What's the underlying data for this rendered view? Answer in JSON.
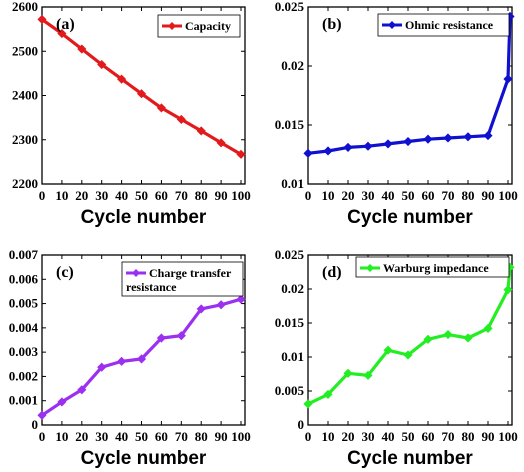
{
  "chart_data": [
    {
      "type": "line",
      "panel_tag": "(a)",
      "xlabel": "Cycle number",
      "ylabel": "",
      "x": [
        0,
        10,
        20,
        30,
        40,
        50,
        60,
        70,
        80,
        90,
        100
      ],
      "x_ticks": [
        0,
        10,
        20,
        30,
        40,
        50,
        60,
        70,
        80,
        90,
        100
      ],
      "xlim": [
        0,
        102
      ],
      "ylim": [
        2200,
        2600
      ],
      "y_ticks": [
        2200,
        2300,
        2400,
        2500,
        2600
      ],
      "y_tick_labels": [
        "2200",
        "2300",
        "2400",
        "2500",
        "2600"
      ],
      "legend_position": "top-right",
      "grid": false,
      "series": [
        {
          "name": "Capacity",
          "color": "#e31a1c",
          "x": [
            0,
            10,
            20,
            30,
            40,
            50,
            60,
            70,
            80,
            90,
            100
          ],
          "values": [
            2572,
            2540,
            2505,
            2470,
            2437,
            2404,
            2372,
            2346,
            2320,
            2293,
            2267
          ]
        }
      ]
    },
    {
      "type": "line",
      "panel_tag": "(b)",
      "xlabel": "Cycle number",
      "ylabel": "",
      "x_ticks": [
        0,
        10,
        20,
        30,
        40,
        50,
        60,
        70,
        80,
        90,
        100
      ],
      "xlim": [
        0,
        102
      ],
      "ylim": [
        0.01,
        0.025
      ],
      "y_ticks": [
        0.01,
        0.015,
        0.02,
        0.025
      ],
      "y_tick_labels": [
        "0.01",
        "0.015",
        "0.02",
        "0.025"
      ],
      "legend_position": "top-right",
      "grid": false,
      "series": [
        {
          "name": "Ohmic resistance",
          "color": "#1010d0",
          "x": [
            0,
            10,
            20,
            30,
            40,
            50,
            60,
            70,
            80,
            90,
            100,
            101
          ],
          "values": [
            0.0126,
            0.0128,
            0.0131,
            0.0132,
            0.0134,
            0.0136,
            0.0138,
            0.0139,
            0.014,
            0.0141,
            0.0189,
            0.0242
          ]
        }
      ]
    },
    {
      "type": "line",
      "panel_tag": "(c)",
      "xlabel": "Cycle number",
      "ylabel": "",
      "x_ticks": [
        0,
        10,
        20,
        30,
        40,
        50,
        60,
        70,
        80,
        90,
        100
      ],
      "xlim": [
        0,
        102
      ],
      "ylim": [
        0,
        0.007
      ],
      "y_ticks": [
        0,
        0.001,
        0.002,
        0.003,
        0.004,
        0.005,
        0.006,
        0.007
      ],
      "y_tick_labels": [
        "0",
        "0.001",
        "0.002",
        "0.003",
        "0.004",
        "0.005",
        "0.006",
        "0.007"
      ],
      "legend_position": "top-right",
      "grid": false,
      "series": [
        {
          "name": "Charge transfer resistance",
          "name_lines": [
            "Charge transfer",
            "resistance"
          ],
          "color": "#9b30f0",
          "x": [
            0,
            10,
            20,
            30,
            40,
            50,
            60,
            70,
            80,
            90,
            100
          ],
          "values": [
            0.0004,
            0.00095,
            0.00145,
            0.00238,
            0.00262,
            0.00272,
            0.00358,
            0.00368,
            0.00478,
            0.00495,
            0.00518
          ]
        }
      ]
    },
    {
      "type": "line",
      "panel_tag": "(d)",
      "xlabel": "Cycle number",
      "ylabel": "",
      "x_ticks": [
        0,
        10,
        20,
        30,
        40,
        50,
        60,
        70,
        80,
        90,
        100
      ],
      "xlim": [
        0,
        102
      ],
      "ylim": [
        0,
        0.025
      ],
      "y_ticks": [
        0,
        0.005,
        0.01,
        0.015,
        0.02,
        0.025
      ],
      "y_tick_labels": [
        "0",
        "0.005",
        "0.01",
        "0.015",
        "0.02",
        "0.025"
      ],
      "legend_position": "top-right",
      "grid": false,
      "series": [
        {
          "name": "Warburg impedance",
          "color": "#22ee22",
          "x": [
            0,
            10,
            20,
            30,
            40,
            50,
            60,
            70,
            80,
            90,
            100,
            101
          ],
          "values": [
            0.0031,
            0.0045,
            0.0076,
            0.0073,
            0.011,
            0.0103,
            0.0126,
            0.0133,
            0.0128,
            0.0142,
            0.0199,
            0.0232
          ]
        }
      ]
    }
  ]
}
